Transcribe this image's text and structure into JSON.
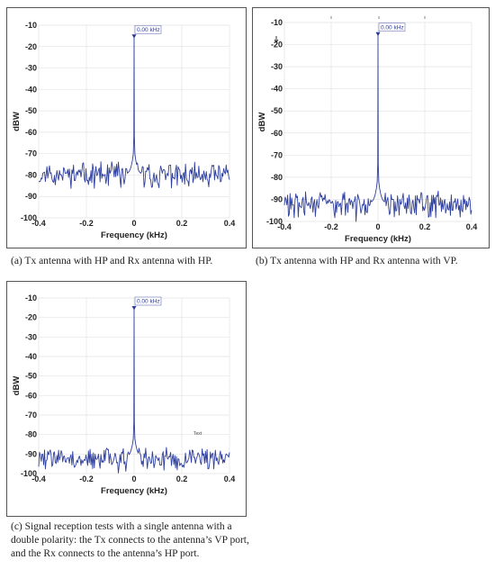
{
  "chart_data": [
    {
      "type": "line",
      "id": "a",
      "xlabel": "Frequency (kHz)",
      "ylabel": "dBW",
      "xlim": [
        -0.4,
        0.4
      ],
      "ylim": [
        -100,
        -10
      ],
      "xticks": [
        "-0.4",
        "-0.2",
        "0",
        "0.2",
        "0.4"
      ],
      "yticks": [
        "-10",
        "-20",
        "-30",
        "-40",
        "-50",
        "-60",
        "-70",
        "-80",
        "-90",
        "-100"
      ],
      "grid": true,
      "series": [
        {
          "noise_floor": -80,
          "peak_x": 0,
          "peak_y": -16,
          "color": "#2e3f9e"
        }
      ],
      "marker_label": "0.00 kHz",
      "note": "",
      "caption": "(a)  Tx antenna with HP and Rx antenna with HP."
    },
    {
      "type": "line",
      "id": "b",
      "xlabel": "Frequency (kHz)",
      "ylabel": "dBW",
      "xlim": [
        -0.4,
        0.4
      ],
      "ylim": [
        -100,
        -10
      ],
      "xticks": [
        "-0.4",
        "-0.2",
        "0",
        "0.2",
        "0.4"
      ],
      "yticks": [
        "-10",
        "-20",
        "-30",
        "-40",
        "-50",
        "-60",
        "-70",
        "-80",
        "-90",
        "-100"
      ],
      "grid": true,
      "series": [
        {
          "noise_floor": -92,
          "peak_x": 0,
          "peak_y": -16,
          "color": "#2e3f9e"
        }
      ],
      "marker_label": "0.00 kHz",
      "note": "",
      "caption": "(b)  Tx antenna with HP and Rx antenna with VP."
    },
    {
      "type": "line",
      "id": "c",
      "xlabel": "Frequency (kHz)",
      "ylabel": "dBW",
      "xlim": [
        -0.4,
        0.4
      ],
      "ylim": [
        -100,
        -10
      ],
      "xticks": [
        "-0.4",
        "-0.2",
        "0",
        "0.2",
        "0.4"
      ],
      "yticks": [
        "-10",
        "-20",
        "-30",
        "-40",
        "-50",
        "-60",
        "-70",
        "-80",
        "-90",
        "-100"
      ],
      "grid": true,
      "series": [
        {
          "noise_floor": -92,
          "peak_x": 0,
          "peak_y": -16,
          "color": "#2e3f9e"
        }
      ],
      "marker_label": "0.00 kHz",
      "note": "Text",
      "caption": "(c)  Signal reception tests with a single antenna with a double polarity: the Tx connects to the antenna’s VP port, and the Rx connects to the antenna’s HP port."
    }
  ]
}
